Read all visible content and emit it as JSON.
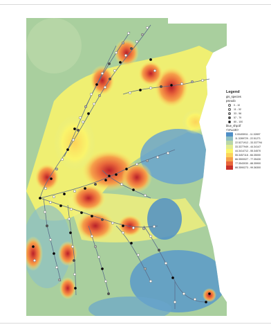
{
  "legend": {
    "title": "Legend",
    "layer_points": "gis_species",
    "field_points": "pseudo",
    "point_classes": [
      {
        "label": "0 - 10",
        "color": "#ffffff"
      },
      {
        "label": "11 - 32",
        "color": "#e8e8e8"
      },
      {
        "label": "33 - 56",
        "color": "#b0b0b0"
      },
      {
        "label": "57 - 79",
        "color": "#505050"
      },
      {
        "label": "80 - 100",
        "color": "#000000"
      }
    ],
    "layer_raster": "blue_shp.tif",
    "field_raster": "<VALUE>",
    "raster_classes": [
      {
        "label": "0.00405911 - 11.32897",
        "color": "#4f8fc7"
      },
      {
        "label": "11.3289729 - 22.51271",
        "color": "#8fc0c4"
      },
      {
        "label": "22.5271912 - 33.337794",
        "color": "#b9d7a7"
      },
      {
        "label": "33.3377949 - 44.34147",
        "color": "#e1ec8f"
      },
      {
        "label": "44.3414712 - 55.34570",
        "color": "#fbf56a"
      },
      {
        "label": "55.3457118 - 66.35000",
        "color": "#fcd35a"
      },
      {
        "label": "66.3500027 - 77.35430",
        "color": "#f6a04a"
      },
      {
        "label": "77.3543030 - 88.35900",
        "color": "#e8653a"
      },
      {
        "label": "88.3590273 - 99.36300",
        "color": "#c8312a"
      }
    ]
  },
  "colors": {
    "base_low": "#5a9ac9",
    "mid": "#b9d7a7",
    "yellow": "#fbf56a",
    "orange": "#f6a04a",
    "red": "#c8312a",
    "route": "#5b6d8a"
  }
}
